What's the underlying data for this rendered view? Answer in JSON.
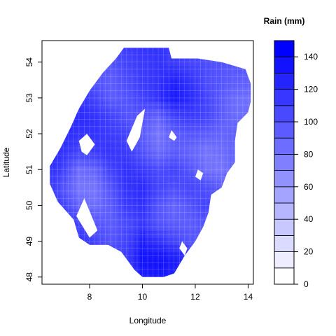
{
  "chart_data": {
    "type": "heatmap",
    "xlabel": "Longitude",
    "ylabel": "Latitude",
    "xlim": [
      6.2,
      14.2
    ],
    "ylim": [
      47.8,
      54.6
    ],
    "x_ticks": [
      8,
      10,
      12,
      14
    ],
    "y_ticks": [
      48,
      49,
      50,
      51,
      52,
      53,
      54
    ],
    "grid": false,
    "legend": {
      "title": "Rain (mm)",
      "placement": "right",
      "range": [
        0,
        150
      ],
      "breaks": [
        0,
        10,
        20,
        30,
        40,
        50,
        60,
        70,
        80,
        90,
        100,
        110,
        120,
        130,
        140,
        150
      ],
      "tick_labels": [
        0,
        20,
        40,
        60,
        80,
        100,
        120,
        140
      ],
      "low_color": "#ffffff",
      "high_color": "#0000ff"
    },
    "outline": [
      [
        9.3,
        54.4
      ],
      [
        11.0,
        54.4
      ],
      [
        11.1,
        54.1
      ],
      [
        12.1,
        54.1
      ],
      [
        13.0,
        54.0
      ],
      [
        13.9,
        53.8
      ],
      [
        14.1,
        53.4
      ],
      [
        14.1,
        52.9
      ],
      [
        14.0,
        52.6
      ],
      [
        13.6,
        52.3
      ],
      [
        13.5,
        51.8
      ],
      [
        13.5,
        51.2
      ],
      [
        13.2,
        50.9
      ],
      [
        13.0,
        50.5
      ],
      [
        12.6,
        50.3
      ],
      [
        12.5,
        49.8
      ],
      [
        12.3,
        49.4
      ],
      [
        12.0,
        49.0
      ],
      [
        11.6,
        48.6
      ],
      [
        11.2,
        48.1
      ],
      [
        10.8,
        48.0
      ],
      [
        10.0,
        48.0
      ],
      [
        9.7,
        48.2
      ],
      [
        9.2,
        48.7
      ],
      [
        8.7,
        48.9
      ],
      [
        8.0,
        48.9
      ],
      [
        7.6,
        49.1
      ],
      [
        7.4,
        49.6
      ],
      [
        6.8,
        50.1
      ],
      [
        6.5,
        50.6
      ],
      [
        6.5,
        51.1
      ],
      [
        6.9,
        51.6
      ],
      [
        7.3,
        52.2
      ],
      [
        7.6,
        52.7
      ],
      [
        8.0,
        53.2
      ],
      [
        8.5,
        53.7
      ],
      [
        9.0,
        54.1
      ]
    ],
    "holes": [
      [
        [
          9.6,
          51.5
        ],
        [
          9.9,
          51.9
        ],
        [
          10.1,
          52.7
        ],
        [
          9.8,
          52.5
        ],
        [
          9.4,
          51.8
        ]
      ],
      [
        [
          7.6,
          51.8
        ],
        [
          7.9,
          52.0
        ],
        [
          8.2,
          51.7
        ],
        [
          7.9,
          51.4
        ],
        [
          7.7,
          51.5
        ]
      ],
      [
        [
          7.8,
          50.2
        ],
        [
          8.3,
          49.3
        ],
        [
          8.0,
          49.1
        ],
        [
          7.5,
          49.7
        ]
      ],
      [
        [
          11.1,
          52.1
        ],
        [
          11.3,
          51.9
        ],
        [
          11.2,
          51.8
        ],
        [
          11.0,
          51.9
        ]
      ],
      [
        [
          12.1,
          51.0
        ],
        [
          12.3,
          50.9
        ],
        [
          12.2,
          50.7
        ],
        [
          12.0,
          50.8
        ]
      ],
      [
        [
          11.5,
          49.0
        ],
        [
          11.7,
          48.8
        ],
        [
          11.6,
          48.6
        ],
        [
          11.4,
          48.8
        ]
      ]
    ],
    "field": {
      "lon": [
        6.4,
        7.0,
        7.6,
        8.2,
        8.8,
        9.4,
        10.0,
        10.6,
        11.2,
        11.8,
        12.4,
        13.0,
        13.6,
        14.2
      ],
      "lat": [
        48.0,
        48.5,
        49.0,
        49.5,
        50.0,
        50.5,
        51.0,
        51.5,
        52.0,
        52.5,
        53.0,
        53.5,
        54.0,
        54.5
      ],
      "rain_mm": [
        [
          140,
          140,
          135,
          130,
          120,
          110,
          130,
          135,
          130,
          120,
          110,
          120,
          130,
          130
        ],
        [
          140,
          135,
          130,
          120,
          110,
          115,
          140,
          140,
          135,
          120,
          110,
          115,
          125,
          130
        ],
        [
          135,
          130,
          120,
          110,
          100,
          110,
          130,
          120,
          110,
          100,
          100,
          110,
          120,
          125
        ],
        [
          130,
          120,
          110,
          100,
          95,
          105,
          115,
          100,
          95,
          95,
          100,
          105,
          115,
          120
        ],
        [
          125,
          110,
          90,
          85,
          95,
          115,
          120,
          100,
          90,
          100,
          110,
          100,
          110,
          115
        ],
        [
          120,
          100,
          80,
          80,
          100,
          120,
          125,
          110,
          105,
          110,
          105,
          95,
          100,
          110
        ],
        [
          125,
          110,
          85,
          90,
          110,
          120,
          115,
          105,
          110,
          100,
          85,
          80,
          95,
          105
        ],
        [
          130,
          120,
          110,
          115,
          120,
          115,
          100,
          85,
          95,
          90,
          80,
          85,
          95,
          100
        ],
        [
          130,
          125,
          120,
          120,
          115,
          110,
          95,
          80,
          95,
          100,
          95,
          90,
          95,
          100
        ],
        [
          130,
          125,
          125,
          120,
          110,
          100,
          100,
          90,
          110,
          115,
          110,
          95,
          85,
          90
        ],
        [
          130,
          125,
          120,
          110,
          95,
          100,
          110,
          120,
          135,
          125,
          110,
          95,
          85,
          85
        ],
        [
          130,
          125,
          115,
          100,
          95,
          105,
          115,
          120,
          130,
          120,
          105,
          100,
          95,
          95
        ],
        [
          130,
          125,
          115,
          105,
          100,
          110,
          115,
          120,
          115,
          110,
          105,
          100,
          100,
          100
        ],
        [
          130,
          125,
          120,
          115,
          110,
          115,
          120,
          120,
          115,
          110,
          105,
          105,
          105,
          105
        ]
      ]
    }
  }
}
